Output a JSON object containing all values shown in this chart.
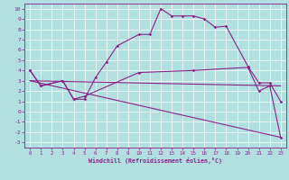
{
  "xlabel": "Windchill (Refroidissement éolien,°C)",
  "bg_color": "#b2e0e0",
  "line_color": "#882288",
  "grid_color": "#ffffff",
  "xlim": [
    -0.5,
    23.5
  ],
  "ylim": [
    -3.5,
    10.5
  ],
  "xticks": [
    0,
    1,
    2,
    3,
    4,
    5,
    6,
    7,
    8,
    9,
    10,
    11,
    12,
    13,
    14,
    15,
    16,
    17,
    18,
    19,
    20,
    21,
    22,
    23
  ],
  "yticks": [
    -3,
    -2,
    -1,
    0,
    1,
    2,
    3,
    4,
    5,
    6,
    7,
    8,
    9,
    10
  ],
  "line1_x": [
    0,
    1,
    3,
    4,
    5,
    6,
    7,
    8,
    10,
    11,
    12,
    13,
    14,
    15,
    16,
    17,
    18,
    20,
    21,
    22,
    23
  ],
  "line1_y": [
    4.0,
    2.5,
    3.0,
    1.2,
    1.2,
    3.3,
    4.8,
    6.4,
    7.5,
    7.5,
    10.0,
    9.3,
    9.3,
    9.3,
    9.0,
    8.2,
    8.3,
    4.4,
    2.8,
    2.8,
    1.0
  ],
  "line2_x": [
    0,
    1,
    3,
    4,
    5,
    10,
    15,
    20,
    21,
    22,
    23
  ],
  "line2_y": [
    4.0,
    2.5,
    3.0,
    1.2,
    1.5,
    3.8,
    4.0,
    4.3,
    2.0,
    2.5,
    -2.5
  ],
  "line3_x": [
    0,
    23
  ],
  "line3_y": [
    3.0,
    2.5
  ],
  "line4_x": [
    0,
    23
  ],
  "line4_y": [
    3.0,
    -2.5
  ]
}
